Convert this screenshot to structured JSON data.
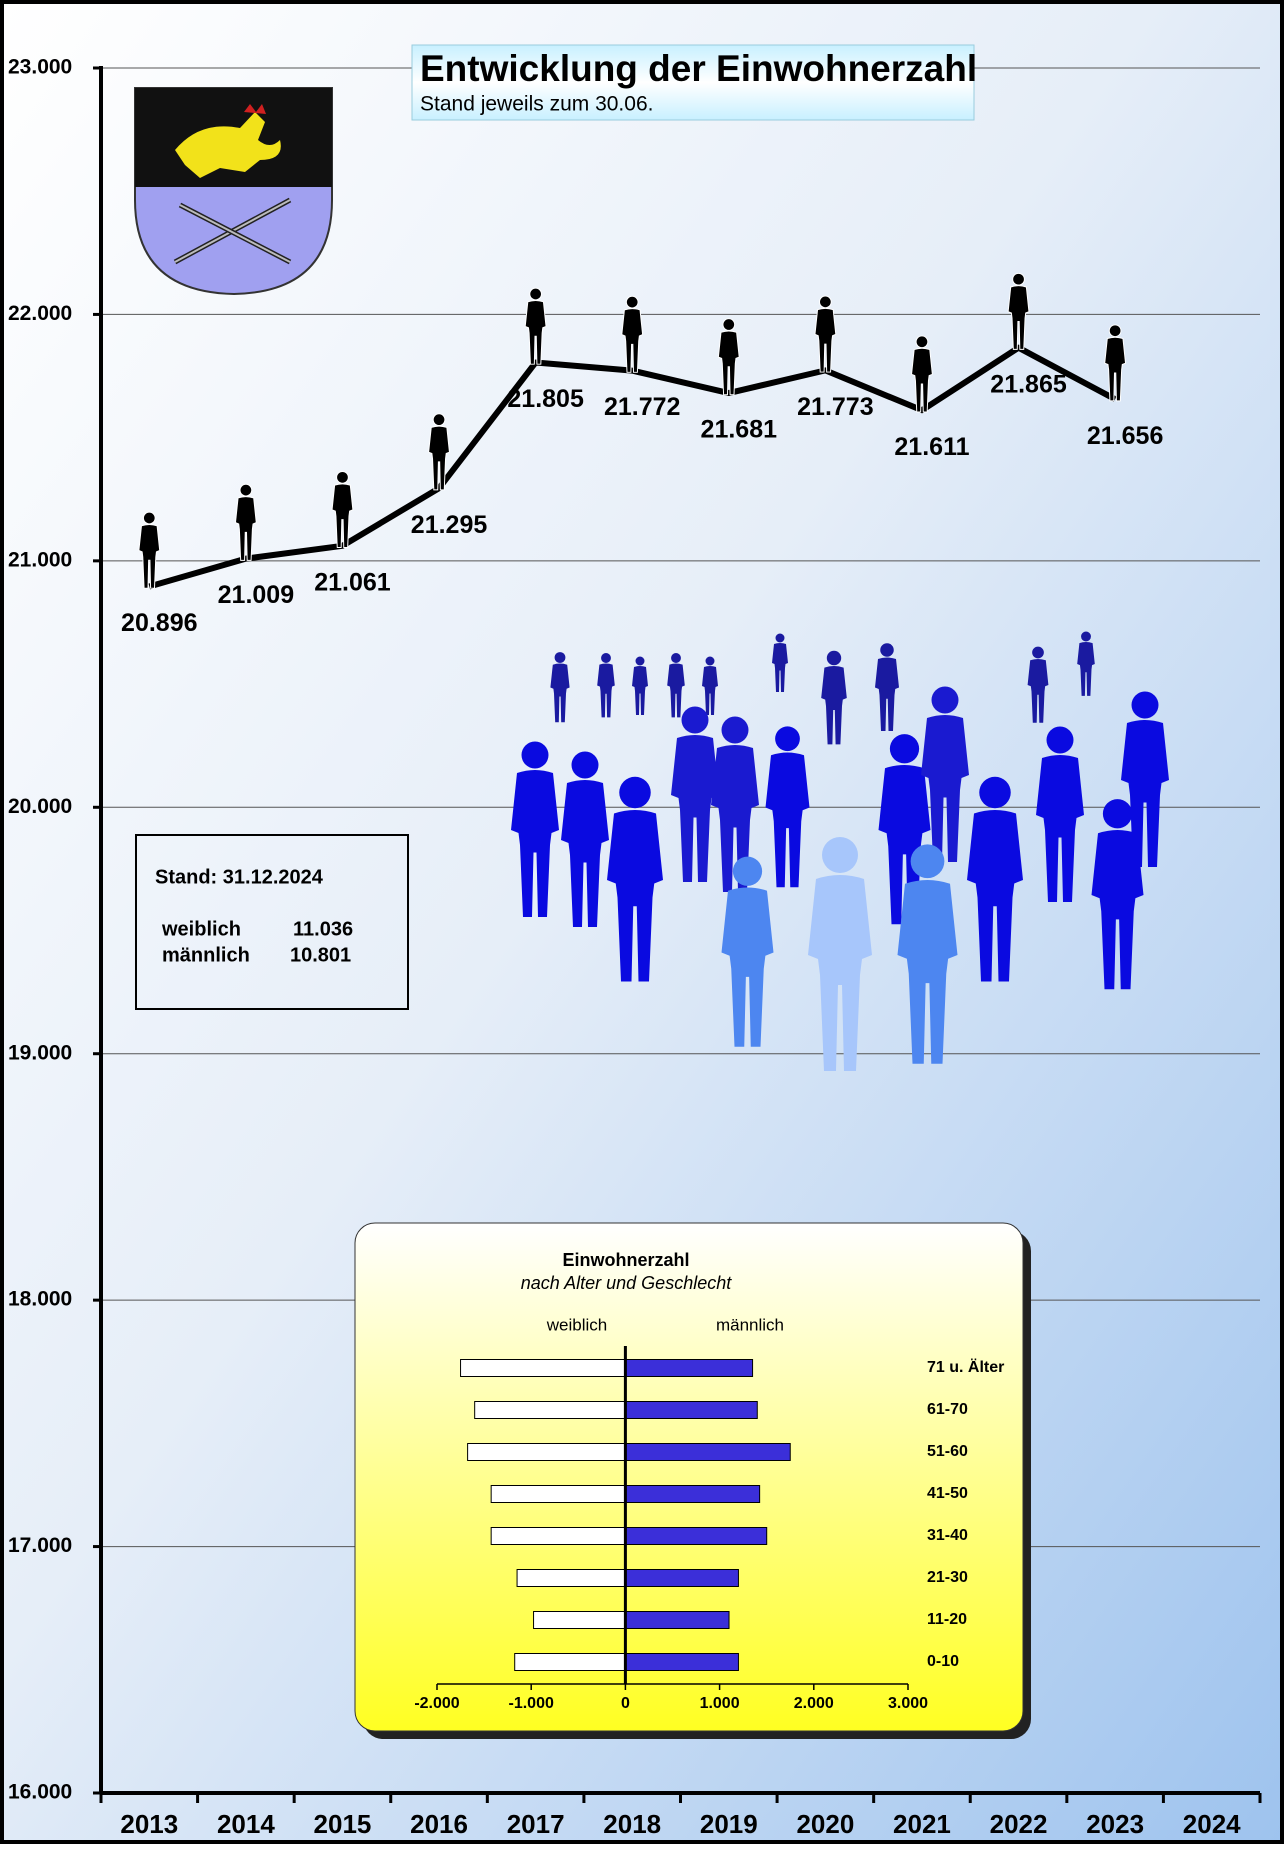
{
  "chart_data": [
    {
      "type": "line",
      "title": "Entwicklung der Einwohnerzahl",
      "subtitle": "Stand jeweils zum 30.06.",
      "categories": [
        "2013",
        "2014",
        "2015",
        "2016",
        "2017",
        "2018",
        "2019",
        "2020",
        "2021",
        "2022",
        "2023",
        "2024"
      ],
      "values": [
        20896,
        21009,
        21061,
        21295,
        21805,
        21772,
        21681,
        21773,
        21611,
        21865,
        21656,
        null
      ],
      "value_labels": [
        "20.896",
        "21.009",
        "21.061",
        "21.295",
        "21.805",
        "21.772",
        "21.681",
        "21.773",
        "21.611",
        "21.865",
        "21.656",
        null
      ],
      "color": "#000000",
      "ylim": [
        16000,
        23000
      ],
      "yticks": [
        {
          "value": 16000,
          "label": "16.000"
        },
        {
          "value": 17000,
          "label": "17.000"
        },
        {
          "value": 18000,
          "label": "18.000"
        },
        {
          "value": 19000,
          "label": "19.000"
        },
        {
          "value": 20000,
          "label": "20.000"
        },
        {
          "value": 21000,
          "label": "21.000"
        },
        {
          "value": 22000,
          "label": "22.000"
        },
        {
          "value": 23000,
          "label": "23.000"
        }
      ],
      "grid": true,
      "info_box": {
        "title": "Stand: 31.12.2024",
        "rows": [
          [
            "weiblich",
            "11.036"
          ],
          [
            "männlich",
            "10.801"
          ]
        ]
      }
    },
    {
      "type": "hbar",
      "title": "Einwohnerzahl",
      "subtitle": "nach Alter und Geschlecht",
      "categories": [
        "71 u. Älter",
        "61-70",
        "51-60",
        "41-50",
        "31-40",
        "21-30",
        "11-20",
        "0-10"
      ],
      "series": [
        {
          "name": "weiblich",
          "color": "#ffffff",
          "values": [
            -1750,
            -1600,
            -1675,
            -1425,
            -1425,
            -1150,
            -975,
            -1175
          ]
        },
        {
          "name": "männlich",
          "color": "#3b2fd9",
          "values": [
            1350,
            1400,
            1750,
            1425,
            1500,
            1200,
            1100,
            1200
          ]
        }
      ],
      "xlim": [
        -2000,
        3000
      ],
      "xticks": [
        {
          "value": -2000,
          "label": "-2.000"
        },
        {
          "value": -1000,
          "label": "-1.000"
        },
        0,
        {
          "value": 1000,
          "label": "1.000"
        },
        {
          "value": 2000,
          "label": "2.000"
        },
        {
          "value": 3000,
          "label": "3.000"
        }
      ]
    }
  ]
}
